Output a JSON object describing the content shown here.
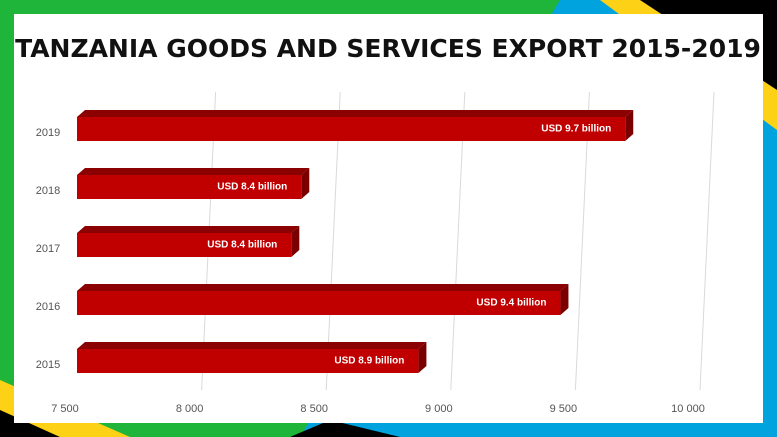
{
  "chart_data": {
    "type": "bar",
    "orientation": "horizontal",
    "title": "TANZANIA GOODS AND SERVICES EXPORT 2015-2019",
    "categories": [
      "2015",
      "2016",
      "2017",
      "2018",
      "2019"
    ],
    "values": [
      8870,
      9440,
      8360,
      8400,
      9700
    ],
    "value_labels": [
      "USD 8.9 billion",
      "USD 9.4 billion",
      "USD 8.4 billion",
      "USD 8.4 billion",
      "USD 9.7 billion"
    ],
    "color": "#c00000",
    "xlim": [
      7500,
      10000
    ],
    "xticks": [
      {
        "value": 7500,
        "label": "7 500"
      },
      {
        "value": 8000,
        "label": "8 000"
      },
      {
        "value": 8500,
        "label": "8 500"
      },
      {
        "value": 9000,
        "label": "9 000"
      },
      {
        "value": 9500,
        "label": "9 500"
      },
      {
        "value": 10000,
        "label": "10 000"
      }
    ],
    "grid": true
  }
}
